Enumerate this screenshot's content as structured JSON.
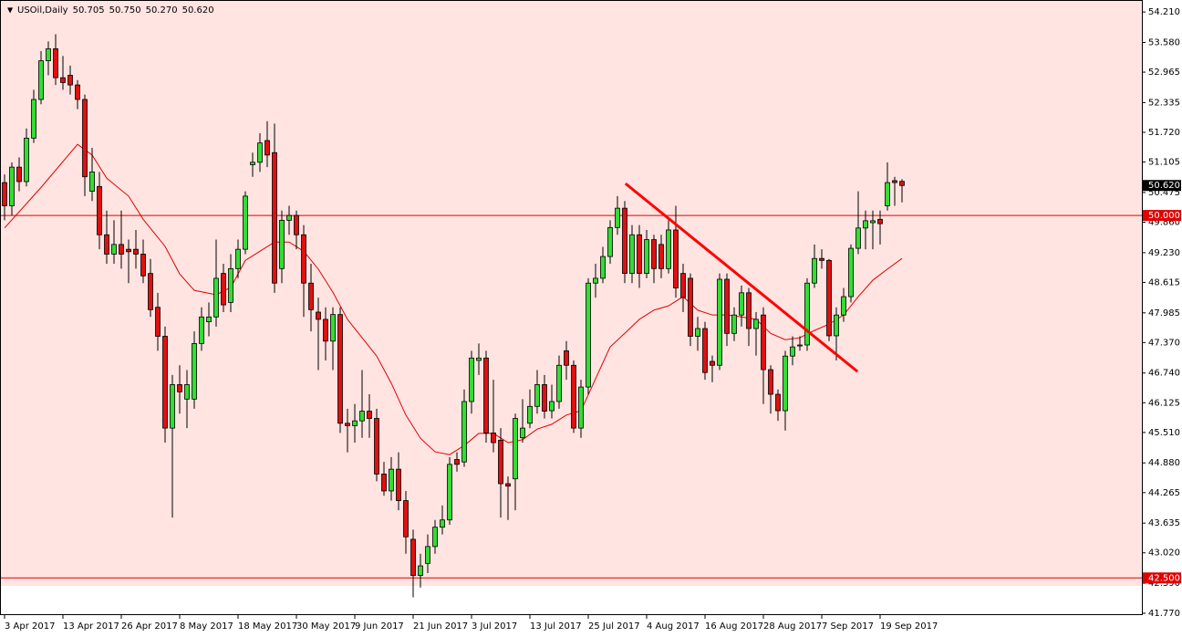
{
  "chart_data": {
    "type": "candlestick",
    "title": "USOil,Daily",
    "quote": [
      "50.705",
      "50.750",
      "50.270",
      "50.620"
    ],
    "categories": [
      "3 Apr 2017",
      null,
      null,
      null,
      null,
      null,
      null,
      null,
      "13 Apr 2017",
      null,
      null,
      null,
      null,
      null,
      null,
      null,
      "26 Apr 2017",
      null,
      null,
      null,
      null,
      null,
      null,
      null,
      "8 May 2017",
      null,
      null,
      null,
      null,
      null,
      null,
      null,
      "18 May 2017",
      null,
      null,
      null,
      null,
      null,
      null,
      null,
      "30 May 2017",
      null,
      null,
      null,
      null,
      null,
      null,
      null,
      "9 Jun 2017",
      null,
      null,
      null,
      null,
      null,
      null,
      null,
      "21 Jun 2017",
      null,
      null,
      null,
      null,
      null,
      null,
      null,
      "3 Jul 2017",
      null,
      null,
      null,
      null,
      null,
      null,
      null,
      "13 Jul 2017",
      null,
      null,
      null,
      null,
      null,
      null,
      null,
      "25 Jul 2017",
      null,
      null,
      null,
      null,
      null,
      null,
      null,
      "4 Aug 2017",
      null,
      null,
      null,
      null,
      null,
      null,
      null,
      "16 Aug 2017",
      null,
      null,
      null,
      null,
      null,
      null,
      null,
      "28 Aug 2017",
      null,
      null,
      null,
      null,
      null,
      null,
      null,
      "7 Sep 2017",
      null,
      null,
      null,
      null,
      null,
      null,
      null,
      "19 Sep 2017",
      null,
      null,
      null
    ],
    "open": [
      50.68,
      50.2,
      51.0,
      50.7,
      51.6,
      52.4,
      53.2,
      53.45,
      52.85,
      52.9,
      52.7,
      52.4,
      50.5,
      50.6,
      49.6,
      49.2,
      49.4,
      49.3,
      49.3,
      49.2,
      48.8,
      48.1,
      47.5,
      45.6,
      46.5,
      46.2,
      46.2,
      47.35,
      47.8,
      47.9,
      48.8,
      48.2,
      48.9,
      49.3,
      51.05,
      51.1,
      51.55,
      51.3,
      48.9,
      49.9,
      50.0,
      49.6,
      48.6,
      48.0,
      47.85,
      47.4,
      47.95,
      45.7,
      45.65,
      45.75,
      45.95,
      45.8,
      44.65,
      44.3,
      44.75,
      44.1,
      43.3,
      42.55,
      42.8,
      43.15,
      43.55,
      43.7,
      44.95,
      44.9,
      46.15,
      47.0,
      47.05,
      45.5,
      45.35,
      44.45,
      44.55,
      45.4,
      45.7,
      46.05,
      46.5,
      45.96,
      46.15,
      47.2,
      46.9,
      45.6,
      46.45,
      48.6,
      48.7,
      49.15,
      49.75,
      50.15,
      48.8,
      49.6,
      48.8,
      49.5,
      49.4,
      48.9,
      49.7,
      48.8,
      48.7,
      47.5,
      47.66,
      46.98,
      46.9,
      48.68,
      47.56,
      47.94,
      48.4,
      47.66,
      47.94,
      46.81,
      46.3,
      45.96,
      47.09,
      47.3,
      47.32,
      48.6,
      49.11,
      49.07,
      47.51,
      47.94,
      48.32,
      49.32,
      49.74,
      49.85,
      49.92,
      50.2,
      50.72,
      50.705
    ],
    "high": [
      50.85,
      51.1,
      51.2,
      51.8,
      52.6,
      53.4,
      53.6,
      53.75,
      53.3,
      53.1,
      52.8,
      52.5,
      51.4,
      50.9,
      50.1,
      49.9,
      50.1,
      49.5,
      49.7,
      49.5,
      49.1,
      48.4,
      47.7,
      46.7,
      46.9,
      46.8,
      47.6,
      48.1,
      48.2,
      49.5,
      49.0,
      49.2,
      49.5,
      50.5,
      51.3,
      51.7,
      51.95,
      51.9,
      50.1,
      50.2,
      50.1,
      49.8,
      49.0,
      48.3,
      48.1,
      48.1,
      48.1,
      46.0,
      46.1,
      46.8,
      46.3,
      46.0,
      44.9,
      45.0,
      45.1,
      44.3,
      43.5,
      43.0,
      43.4,
      43.7,
      44.0,
      45.0,
      45.1,
      46.4,
      47.2,
      47.35,
      47.2,
      46.6,
      45.6,
      44.6,
      45.9,
      46.2,
      46.4,
      46.8,
      46.7,
      46.5,
      47.1,
      47.4,
      47.0,
      46.6,
      48.7,
      49.0,
      49.35,
      49.9,
      50.4,
      50.3,
      49.8,
      49.8,
      49.7,
      49.6,
      49.6,
      49.9,
      50.2,
      49.0,
      48.8,
      47.9,
      47.8,
      47.1,
      48.8,
      48.8,
      48.1,
      48.55,
      48.5,
      48.0,
      48.1,
      46.9,
      46.4,
      47.2,
      47.5,
      47.5,
      48.7,
      49.4,
      49.3,
      49.1,
      48.1,
      48.5,
      49.4,
      50.5,
      50.1,
      50.1,
      50.1,
      51.1,
      50.8,
      50.75
    ],
    "low": [
      49.9,
      50.0,
      50.5,
      50.6,
      51.5,
      52.3,
      52.9,
      52.7,
      52.6,
      52.5,
      52.2,
      50.4,
      50.3,
      49.3,
      49.0,
      49.0,
      48.9,
      48.6,
      48.9,
      48.6,
      47.9,
      47.2,
      45.3,
      43.75,
      45.9,
      45.6,
      46.0,
      47.2,
      47.5,
      47.7,
      48.0,
      48.0,
      48.7,
      49.2,
      50.8,
      50.9,
      51.0,
      48.4,
      48.6,
      49.6,
      49.3,
      47.9,
      47.6,
      46.8,
      47.0,
      46.8,
      45.5,
      45.1,
      45.3,
      45.4,
      45.4,
      44.5,
      44.2,
      44.1,
      43.9,
      43.0,
      42.1,
      42.3,
      42.6,
      43.0,
      43.4,
      43.6,
      44.7,
      44.8,
      45.9,
      46.7,
      45.3,
      45.1,
      43.75,
      43.7,
      43.9,
      45.3,
      45.6,
      45.9,
      45.8,
      45.8,
      46.0,
      46.6,
      45.5,
      45.4,
      46.3,
      48.3,
      48.6,
      49.0,
      49.6,
      48.6,
      48.6,
      48.5,
      48.7,
      48.6,
      48.7,
      48.8,
      48.3,
      48.0,
      47.3,
      47.2,
      46.6,
      46.55,
      46.8,
      47.3,
      47.4,
      47.7,
      47.3,
      47.1,
      46.1,
      45.9,
      45.75,
      45.55,
      46.9,
      47.2,
      47.2,
      48.5,
      48.9,
      47.4,
      47.0,
      47.8,
      48.2,
      49.2,
      49.3,
      49.3,
      49.4,
      50.1,
      50.2,
      50.27
    ],
    "close": [
      50.2,
      51.0,
      50.7,
      51.6,
      52.4,
      53.2,
      53.45,
      52.85,
      52.75,
      52.7,
      52.4,
      50.8,
      50.9,
      49.6,
      49.2,
      49.4,
      49.2,
      49.25,
      49.2,
      48.75,
      48.05,
      47.5,
      45.6,
      46.5,
      46.35,
      46.5,
      47.35,
      47.9,
      47.9,
      48.7,
      48.15,
      48.9,
      49.3,
      50.4,
      51.1,
      51.5,
      51.25,
      48.6,
      49.9,
      50.0,
      49.6,
      48.6,
      48.05,
      47.85,
      47.4,
      47.95,
      45.7,
      45.65,
      45.75,
      45.95,
      45.8,
      44.65,
      44.3,
      44.75,
      44.1,
      43.35,
      42.55,
      42.75,
      43.15,
      43.55,
      43.7,
      44.85,
      44.85,
      46.15,
      47.05,
      47.05,
      45.5,
      45.3,
      44.45,
      44.4,
      45.8,
      45.6,
      46.05,
      46.5,
      45.95,
      46.15,
      46.9,
      46.9,
      45.6,
      46.45,
      48.6,
      48.7,
      49.15,
      49.75,
      50.15,
      48.8,
      49.6,
      48.8,
      49.5,
      48.9,
      48.9,
      49.7,
      48.5,
      48.3,
      47.5,
      47.66,
      46.75,
      46.9,
      48.68,
      47.56,
      47.94,
      48.4,
      47.66,
      47.85,
      46.81,
      46.3,
      45.96,
      47.09,
      47.28,
      47.32,
      48.6,
      49.11,
      49.07,
      47.51,
      47.94,
      48.32,
      49.32,
      49.74,
      49.89,
      49.89,
      49.83,
      50.68,
      50.68,
      50.62
    ],
    "up_color": "#33dd33",
    "down_color": "#e01010",
    "background": "#ffe4e1",
    "ylim": [
      41.75,
      54.42
    ],
    "yticks": [
      {
        "value": 54.21,
        "label": "54.210"
      },
      {
        "value": 53.58,
        "label": "53.580"
      },
      {
        "value": 52.965,
        "label": "52.965"
      },
      {
        "value": 52.335,
        "label": "52.335"
      },
      {
        "value": 51.72,
        "label": "51.720"
      },
      {
        "value": 51.105,
        "label": "51.105"
      },
      {
        "value": 50.475,
        "label": "50.475"
      },
      {
        "value": 49.86,
        "label": "49.860"
      },
      {
        "value": 49.23,
        "label": "49.230"
      },
      {
        "value": 48.615,
        "label": "48.615"
      },
      {
        "value": 47.985,
        "label": "47.985"
      },
      {
        "value": 47.37,
        "label": "47.370"
      },
      {
        "value": 46.74,
        "label": "46.740"
      },
      {
        "value": 46.125,
        "label": "46.125"
      },
      {
        "value": 45.51,
        "label": "45.510"
      },
      {
        "value": 44.88,
        "label": "44.880"
      },
      {
        "value": 44.265,
        "label": "44.265"
      },
      {
        "value": 43.635,
        "label": "43.635"
      },
      {
        "value": 43.02,
        "label": "43.020"
      },
      {
        "value": 42.39,
        "label": "42.390"
      },
      {
        "value": 41.77,
        "label": "41.770"
      }
    ],
    "ma": {
      "color": "#e00000",
      "x": [
        0,
        5,
        10,
        12,
        14,
        17,
        19,
        22,
        24,
        26,
        29,
        31,
        33,
        35,
        37,
        39,
        41,
        43,
        45,
        47,
        49,
        51,
        53,
        55,
        57,
        59,
        61,
        63,
        65,
        67,
        69,
        71,
        73,
        75,
        77,
        79,
        81,
        83,
        85,
        87,
        89,
        91,
        93,
        95,
        97,
        99,
        101,
        103,
        105,
        107,
        109,
        111,
        113,
        115,
        117,
        119,
        121,
        123
      ],
      "values": [
        49.74,
        50.58,
        51.47,
        51.25,
        50.77,
        50.4,
        49.92,
        49.36,
        48.79,
        48.45,
        48.36,
        48.51,
        49.07,
        49.26,
        49.45,
        49.45,
        49.26,
        48.89,
        48.41,
        47.85,
        47.47,
        47.09,
        46.53,
        45.87,
        45.39,
        45.11,
        45.05,
        45.24,
        45.49,
        45.49,
        45.3,
        45.36,
        45.58,
        45.68,
        45.87,
        45.96,
        46.62,
        47.28,
        47.56,
        47.85,
        48.04,
        48.13,
        48.32,
        48.04,
        47.94,
        47.94,
        47.9,
        47.85,
        47.56,
        47.43,
        47.47,
        47.62,
        47.75,
        47.94,
        48.32,
        48.66,
        48.89,
        49.11
      ]
    },
    "trendline": {
      "color": "#ff0000",
      "x": [
        85.1,
        116.9
      ],
      "values": [
        50.66,
        46.77
      ]
    },
    "levels": [
      {
        "value": 50,
        "label": "50.000"
      },
      {
        "value": 42.5,
        "label": "42.500"
      }
    ],
    "level_color": "#e00000",
    "last_price": {
      "value": 50.62,
      "label": "50.620"
    }
  }
}
